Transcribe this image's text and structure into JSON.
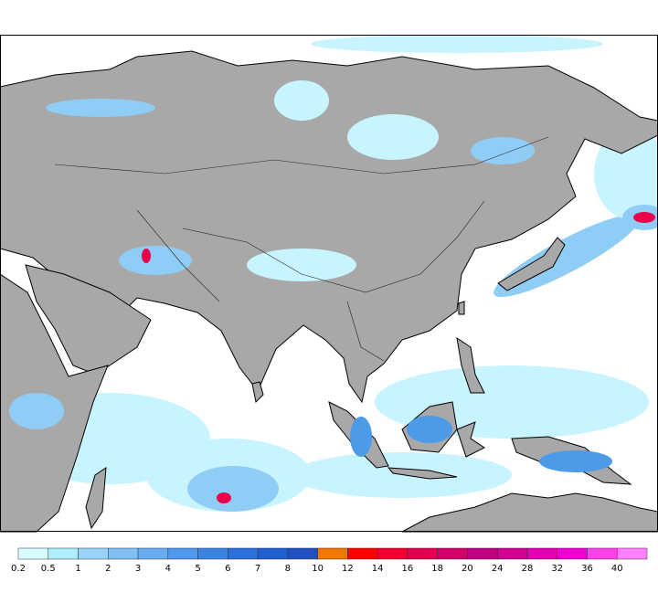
{
  "legend": {
    "labels": [
      0.2,
      0.5,
      1,
      2,
      3,
      4,
      5,
      6,
      7,
      8,
      10,
      12,
      14,
      16,
      18,
      20,
      24,
      28,
      32,
      36,
      40
    ],
    "colors": [
      "#d8fcff",
      "#b0eefc",
      "#98d4f8",
      "#80c0f4",
      "#68acf0",
      "#5098ec",
      "#3c84e4",
      "#2c70dc",
      "#2060d0",
      "#2050c0",
      "#f07800",
      "#ff0000",
      "#f00030",
      "#e00050",
      "#d00068",
      "#c00080",
      "#d00090",
      "#e000b0",
      "#f000d0",
      "#ff40e8",
      "#ff80ff"
    ]
  }
}
